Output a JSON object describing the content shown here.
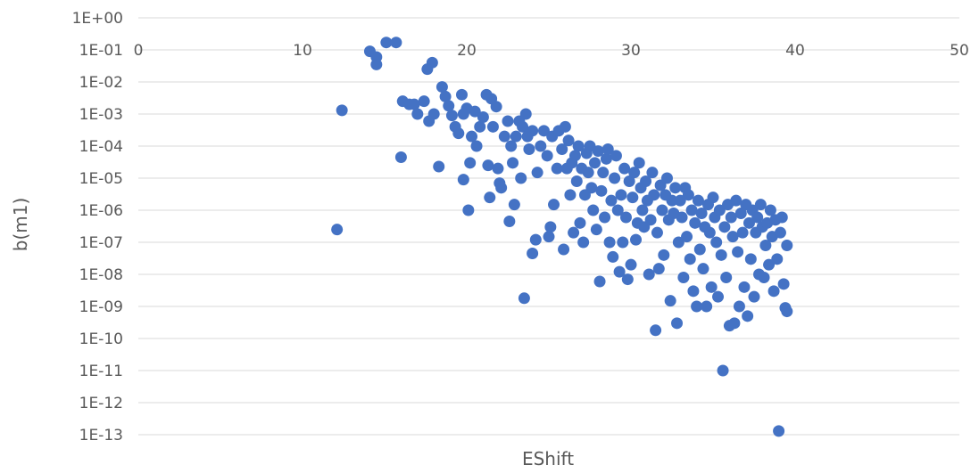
{
  "chart_data": {
    "type": "scatter",
    "xlabel": "EShift",
    "ylabel": "b(m1)",
    "xlim": [
      0,
      50
    ],
    "ylim_exponent": [
      -13,
      0
    ],
    "y_scale": "log",
    "x_ticks": [
      "0",
      "10",
      "20",
      "30",
      "40",
      "50"
    ],
    "y_ticks": [
      "1E+00",
      "1E-01",
      "1E-02",
      "1E-03",
      "1E-04",
      "1E-05",
      "1E-06",
      "1E-07",
      "1E-08",
      "1E-09",
      "1E-10",
      "1E-11",
      "1E-12",
      "1E-13"
    ],
    "x_axis_position": "crosses at y = 1E-01",
    "grid": "horizontal major gridlines",
    "series": [
      {
        "color": "#4472c4",
        "points": [
          [
            12.1,
            2.5e-07
          ],
          [
            12.4,
            0.0013
          ],
          [
            14.1,
            0.09
          ],
          [
            14.5,
            0.06
          ],
          [
            14.5,
            0.035
          ],
          [
            15.1,
            0.17
          ],
          [
            15.7,
            0.17
          ],
          [
            16.0,
            4.5e-05
          ],
          [
            16.1,
            0.0025
          ],
          [
            16.5,
            0.002
          ],
          [
            16.8,
            0.002
          ],
          [
            17.0,
            0.001
          ],
          [
            17.4,
            0.0025
          ],
          [
            17.6,
            0.025
          ],
          [
            17.7,
            0.0006
          ],
          [
            17.9,
            0.04
          ],
          [
            18.0,
            0.001
          ],
          [
            18.3,
            2.3e-05
          ],
          [
            18.5,
            0.007
          ],
          [
            18.7,
            0.0035
          ],
          [
            18.9,
            0.0018
          ],
          [
            19.1,
            0.0009
          ],
          [
            19.3,
            0.0004
          ],
          [
            19.5,
            0.00025
          ],
          [
            19.7,
            0.004
          ],
          [
            19.8,
            0.001
          ],
          [
            19.8,
            9e-06
          ],
          [
            20.0,
            0.0015
          ],
          [
            20.1,
            1e-06
          ],
          [
            20.2,
            3e-05
          ],
          [
            20.3,
            0.0002
          ],
          [
            20.5,
            0.0012
          ],
          [
            20.6,
            0.0001
          ],
          [
            20.8,
            0.0004
          ],
          [
            21.0,
            0.0008
          ],
          [
            21.2,
            0.004
          ],
          [
            21.3,
            2.5e-05
          ],
          [
            21.4,
            2.5e-06
          ],
          [
            21.5,
            0.003
          ],
          [
            21.6,
            0.0004
          ],
          [
            21.8,
            0.0017
          ],
          [
            21.9,
            2e-05
          ],
          [
            22.0,
            7e-06
          ],
          [
            22.1,
            5e-06
          ],
          [
            22.3,
            0.0002
          ],
          [
            22.5,
            0.0006
          ],
          [
            22.6,
            4.5e-07
          ],
          [
            22.7,
            0.0001
          ],
          [
            22.8,
            3e-05
          ],
          [
            22.9,
            1.5e-06
          ],
          [
            23.0,
            0.0002
          ],
          [
            23.2,
            0.0006
          ],
          [
            23.3,
            1e-05
          ],
          [
            23.4,
            0.0004
          ],
          [
            23.5,
            1.8e-09
          ],
          [
            23.6,
            0.001
          ],
          [
            23.7,
            0.0002
          ],
          [
            23.8,
            8e-05
          ],
          [
            24.0,
            4.5e-08
          ],
          [
            24.0,
            0.0003
          ],
          [
            24.2,
            1.2e-07
          ],
          [
            24.3,
            1.5e-05
          ],
          [
            24.5,
            0.0001
          ],
          [
            24.7,
            0.0003
          ],
          [
            24.9,
            5e-05
          ],
          [
            25.0,
            1.5e-07
          ],
          [
            25.1,
            3e-07
          ],
          [
            25.2,
            0.0002
          ],
          [
            25.3,
            1.5e-06
          ],
          [
            25.5,
            2e-05
          ],
          [
            25.6,
            0.0003
          ],
          [
            25.8,
            8e-05
          ],
          [
            25.9,
            6e-08
          ],
          [
            26.0,
            0.0004
          ],
          [
            26.1,
            2e-05
          ],
          [
            26.2,
            0.00015
          ],
          [
            26.3,
            3e-06
          ],
          [
            26.4,
            3e-05
          ],
          [
            26.5,
            2e-07
          ],
          [
            26.6,
            5e-05
          ],
          [
            26.7,
            8e-06
          ],
          [
            26.8,
            0.0001
          ],
          [
            26.9,
            4e-07
          ],
          [
            27.0,
            2e-05
          ],
          [
            27.1,
            1e-07
          ],
          [
            27.2,
            3e-06
          ],
          [
            27.3,
            6e-05
          ],
          [
            27.4,
            1.5e-05
          ],
          [
            27.5,
            0.0001
          ],
          [
            27.6,
            5e-06
          ],
          [
            27.7,
            1e-06
          ],
          [
            27.8,
            3e-05
          ],
          [
            27.9,
            2.5e-07
          ],
          [
            28.0,
            7e-05
          ],
          [
            28.1,
            6e-09
          ],
          [
            28.2,
            4e-06
          ],
          [
            28.3,
            1.5e-05
          ],
          [
            28.4,
            6e-07
          ],
          [
            28.5,
            4e-05
          ],
          [
            28.6,
            8e-05
          ],
          [
            28.7,
            1e-07
          ],
          [
            28.8,
            2e-06
          ],
          [
            28.9,
            3.5e-08
          ],
          [
            29.0,
            1e-05
          ],
          [
            29.1,
            5e-05
          ],
          [
            29.2,
            1e-06
          ],
          [
            29.3,
            1.2e-08
          ],
          [
            29.4,
            3e-06
          ],
          [
            29.5,
            1e-07
          ],
          [
            29.6,
            2e-05
          ],
          [
            29.7,
            6e-07
          ],
          [
            29.8,
            7e-09
          ],
          [
            29.9,
            8e-06
          ],
          [
            30.0,
            2e-08
          ],
          [
            30.1,
            2.5e-06
          ],
          [
            30.2,
            1.5e-05
          ],
          [
            30.3,
            1.2e-07
          ],
          [
            30.4,
            4e-07
          ],
          [
            30.5,
            3e-05
          ],
          [
            30.6,
            5e-06
          ],
          [
            30.7,
            1e-06
          ],
          [
            30.8,
            3e-07
          ],
          [
            30.9,
            8e-06
          ],
          [
            31.0,
            2e-06
          ],
          [
            31.1,
            1e-08
          ],
          [
            31.2,
            5e-07
          ],
          [
            31.3,
            1.5e-05
          ],
          [
            31.4,
            3e-06
          ],
          [
            31.5,
            1.8e-10
          ],
          [
            31.6,
            2e-07
          ],
          [
            31.7,
            1.5e-08
          ],
          [
            31.8,
            6e-06
          ],
          [
            31.9,
            1e-06
          ],
          [
            32.0,
            4e-08
          ],
          [
            32.1,
            3e-06
          ],
          [
            32.2,
            1e-05
          ],
          [
            32.3,
            5e-07
          ],
          [
            32.4,
            1.5e-09
          ],
          [
            32.5,
            2e-06
          ],
          [
            32.6,
            8e-07
          ],
          [
            32.7,
            5e-06
          ],
          [
            32.8,
            3e-10
          ],
          [
            32.9,
            1e-07
          ],
          [
            33.0,
            2e-06
          ],
          [
            33.1,
            6e-07
          ],
          [
            33.2,
            8e-09
          ],
          [
            33.3,
            5e-06
          ],
          [
            33.4,
            1.5e-07
          ],
          [
            33.5,
            3e-06
          ],
          [
            33.6,
            3e-08
          ],
          [
            33.7,
            1e-06
          ],
          [
            33.8,
            3e-09
          ],
          [
            33.9,
            4e-07
          ],
          [
            34.0,
            1e-09
          ],
          [
            34.1,
            2e-06
          ],
          [
            34.2,
            6e-08
          ],
          [
            34.3,
            8e-07
          ],
          [
            34.4,
            1.5e-08
          ],
          [
            34.5,
            3e-07
          ],
          [
            34.6,
            1e-09
          ],
          [
            34.7,
            1.5e-06
          ],
          [
            34.8,
            2e-07
          ],
          [
            34.9,
            4e-09
          ],
          [
            35.0,
            2.5e-06
          ],
          [
            35.1,
            6e-07
          ],
          [
            35.2,
            1e-07
          ],
          [
            35.3,
            2e-09
          ],
          [
            35.4,
            1e-06
          ],
          [
            35.5,
            4e-08
          ],
          [
            35.6,
            1e-11
          ],
          [
            35.7,
            3e-07
          ],
          [
            35.8,
            8e-09
          ],
          [
            35.9,
            1.5e-06
          ],
          [
            36.0,
            2.5e-10
          ],
          [
            36.1,
            6e-07
          ],
          [
            36.2,
            1.5e-07
          ],
          [
            36.3,
            3e-10
          ],
          [
            36.4,
            2e-06
          ],
          [
            36.5,
            5e-08
          ],
          [
            36.6,
            1e-09
          ],
          [
            36.7,
            8e-07
          ],
          [
            36.8,
            2e-07
          ],
          [
            36.9,
            4e-09
          ],
          [
            37.0,
            1.5e-06
          ],
          [
            37.1,
            5e-10
          ],
          [
            37.2,
            4e-07
          ],
          [
            37.3,
            3e-08
          ],
          [
            37.4,
            1e-06
          ],
          [
            37.5,
            2e-09
          ],
          [
            37.6,
            2e-07
          ],
          [
            37.7,
            6e-07
          ],
          [
            37.8,
            1e-08
          ],
          [
            37.9,
            1.5e-06
          ],
          [
            38.0,
            3e-07
          ],
          [
            38.1,
            8e-09
          ],
          [
            38.2,
            8e-08
          ],
          [
            38.3,
            4e-07
          ],
          [
            38.4,
            2e-08
          ],
          [
            38.5,
            1e-06
          ],
          [
            38.6,
            1.5e-07
          ],
          [
            38.7,
            3e-09
          ],
          [
            38.8,
            5e-07
          ],
          [
            38.9,
            3e-08
          ],
          [
            39.0,
            1.3e-13
          ],
          [
            39.1,
            2e-07
          ],
          [
            39.2,
            6e-07
          ],
          [
            39.3,
            5e-09
          ],
          [
            39.4,
            9e-10
          ],
          [
            39.5,
            8e-08
          ],
          [
            39.5,
            7e-10
          ]
        ]
      }
    ]
  }
}
